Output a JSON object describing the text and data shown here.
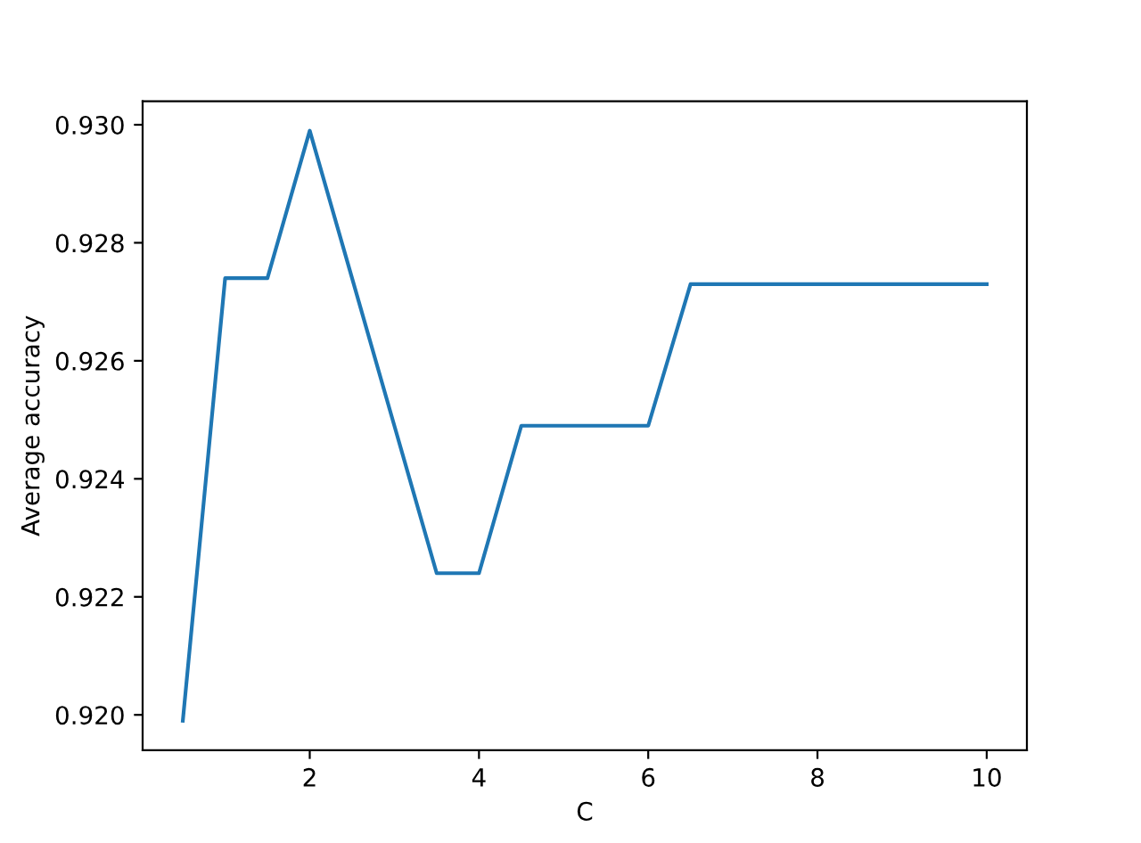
{
  "chart_data": {
    "type": "line",
    "xlabel": "C",
    "ylabel": "Average accuracy",
    "x": [
      0.5,
      1,
      1.5,
      2,
      2.5,
      3,
      3.5,
      4,
      4.5,
      5,
      5.5,
      6,
      6.5,
      7,
      7.5,
      8,
      8.5,
      9,
      9.5,
      10
    ],
    "series": [
      {
        "color": "#1f77b4",
        "values": [
          0.9199,
          0.9274,
          0.9274,
          0.9299,
          0.9274,
          0.9249,
          0.9224,
          0.9224,
          0.9249,
          0.9249,
          0.9249,
          0.9249,
          0.9273,
          0.9273,
          0.9273,
          0.9273,
          0.9273,
          0.9273,
          0.9273,
          0.9273
        ]
      }
    ],
    "xlim": [
      0.025,
      10.475
    ],
    "xticks": [
      2,
      4,
      6,
      8,
      10
    ],
    "ylim": [
      0.9194,
      0.9304
    ],
    "yticks": [
      {
        "value": 0.92,
        "label": "0.920"
      },
      {
        "value": 0.922,
        "label": "0.922"
      },
      {
        "value": 0.924,
        "label": "0.924"
      },
      {
        "value": 0.926,
        "label": "0.926"
      },
      {
        "value": 0.928,
        "label": "0.928"
      },
      {
        "value": 0.93,
        "label": "0.930"
      }
    ],
    "grid": false,
    "legend": false
  }
}
